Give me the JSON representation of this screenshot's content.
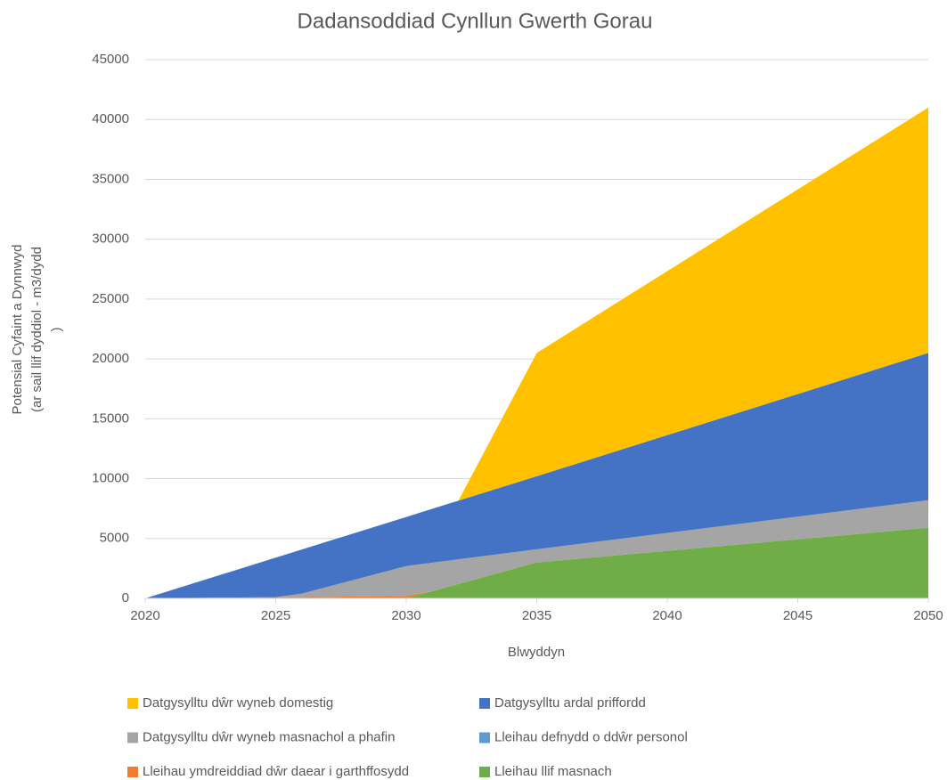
{
  "chart_data": {
    "type": "area",
    "stacked": true,
    "title": "Dadansoddiad Cynllun Gwerth Gorau",
    "xlabel": "Blwyddyn",
    "ylabel": [
      "Potensial Cyfaint a Dynnwyd",
      "(ar sail llif dyddiol - m3/dydd",
      ")"
    ],
    "x": [
      2020,
      2025,
      2026,
      2030,
      2031,
      2032,
      2035,
      2050
    ],
    "series": [
      {
        "name": "Datgysylltu dŵr wyneb domestig",
        "color": "#FFC000",
        "values": [
          0,
          0,
          0,
          0,
          0,
          0,
          10300,
          20500
        ]
      },
      {
        "name": "Datgysylltu ardal priffordd",
        "color": "#4472C4",
        "values": [
          0,
          3300,
          3680,
          4100,
          4500,
          4900,
          6100,
          12300
        ]
      },
      {
        "name": "Datgysylltu dŵr wyneb masnachol a phafin",
        "color": "#A5A5A5",
        "values": [
          0,
          0,
          300,
          2500,
          2380,
          2060,
          1100,
          2300
        ]
      },
      {
        "name": "Lleihau defnydd o ddŵr personol",
        "color": "#5B9BD5",
        "values": [
          0,
          0,
          0,
          0,
          0,
          0,
          0,
          0
        ]
      },
      {
        "name": "Lleihau ymdreiddiad dŵr daear i garthffosydd",
        "color": "#ED7D31",
        "values": [
          0,
          100,
          100,
          200,
          0,
          0,
          0,
          0
        ]
      },
      {
        "name": "Lleihau llif masnach",
        "color": "#70AD47",
        "values": [
          0,
          0,
          0,
          0,
          600,
          1200,
          3000,
          5900
        ]
      }
    ],
    "xlim": [
      2020,
      2050
    ],
    "xticks": [
      2020,
      2025,
      2030,
      2035,
      2040,
      2045,
      2050
    ],
    "ylim": [
      0,
      45000
    ],
    "yticks": [
      0,
      5000,
      10000,
      15000,
      20000,
      25000,
      30000,
      35000,
      40000,
      45000
    ],
    "grid": true,
    "legend": "bottom"
  }
}
